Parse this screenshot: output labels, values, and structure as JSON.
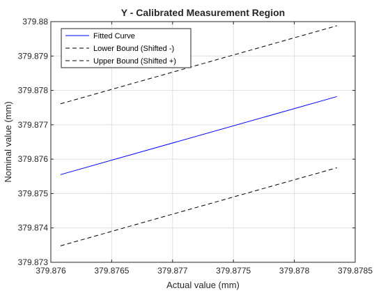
{
  "chart_data": {
    "type": "line",
    "title": "Y - Calibrated Measurement Region",
    "xlabel": "Actual value (mm)",
    "ylabel": "Nominal value (mm)",
    "xlim": [
      379.876,
      379.8785
    ],
    "ylim": [
      379.873,
      379.88
    ],
    "x_ticks": [
      379.876,
      379.8765,
      379.877,
      379.8775,
      379.878,
      379.8785
    ],
    "x_tick_labels": [
      "379.876",
      "379.8765",
      "379.877",
      "379.8775",
      "379.878",
      "379.8785"
    ],
    "y_ticks": [
      379.873,
      379.874,
      379.875,
      379.876,
      379.877,
      379.878,
      379.879,
      379.88
    ],
    "y_tick_labels": [
      "379.873",
      "379.874",
      "379.875",
      "379.876",
      "379.877",
      "379.878",
      "379.879",
      "379.88"
    ],
    "grid": true,
    "legend_position": "top-left",
    "series": [
      {
        "name": "Fitted Curve",
        "color": "#0000ff",
        "dash": "solid",
        "x": [
          379.87608,
          379.87835
        ],
        "y": [
          379.87555,
          379.87782
        ]
      },
      {
        "name": "Lower Bound (Shifted -)",
        "color": "#000000",
        "dash": "dashed",
        "x": [
          379.87608,
          379.87835
        ],
        "y": [
          379.87348,
          379.87575
        ]
      },
      {
        "name": "Upper Bound (Shifted +)",
        "color": "#000000",
        "dash": "dashed",
        "x": [
          379.87608,
          379.87835
        ],
        "y": [
          379.87761,
          379.87988
        ]
      }
    ]
  }
}
